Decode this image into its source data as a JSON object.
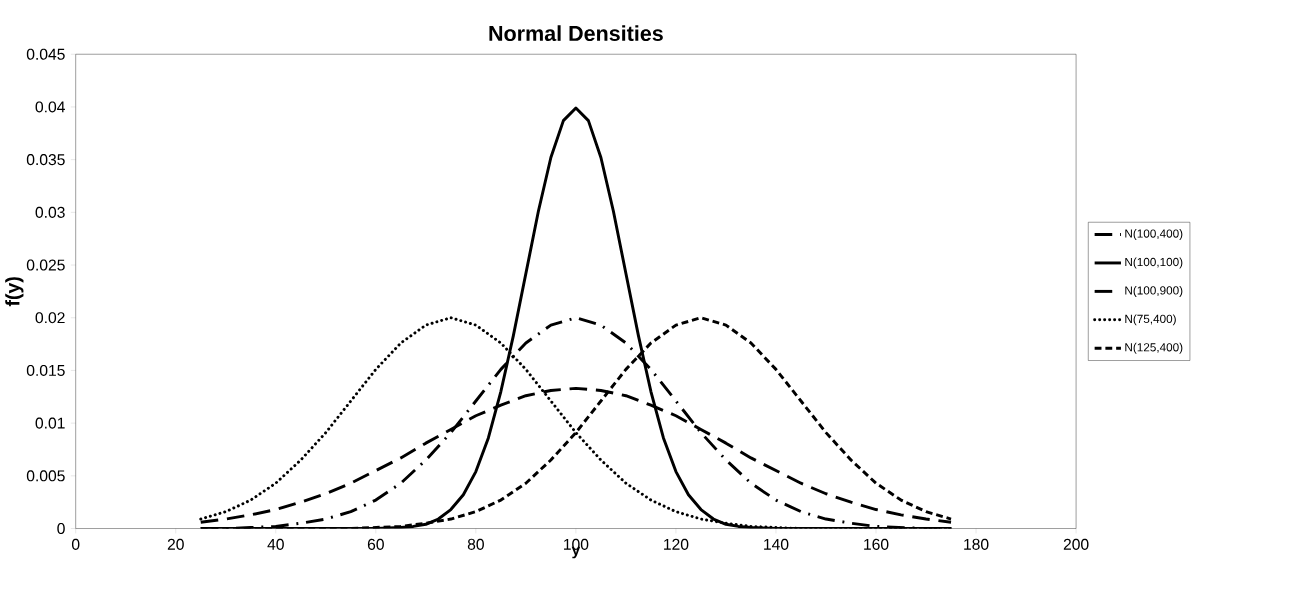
{
  "chart_data": {
    "type": "line",
    "title": "Normal Densities",
    "xlabel": "y",
    "ylabel": "f(y)",
    "x": [
      25,
      30,
      35,
      40,
      45,
      50,
      55,
      60,
      65,
      70,
      75,
      80,
      85,
      90,
      95,
      100,
      105,
      110,
      115,
      120,
      125,
      130,
      135,
      140,
      145,
      150,
      155,
      160,
      165,
      170,
      175
    ],
    "series": [
      {
        "name": "N(100,400)",
        "color": "#000000",
        "line_style": "dashdot",
        "values": [
          0,
          0,
          0.0001,
          0.0002,
          0.0005,
          0.0009,
          0.0016,
          0.0027,
          0.0043,
          0.0065,
          0.0091,
          0.0121,
          0.0151,
          0.0176,
          0.0193,
          0.02,
          0.0193,
          0.0176,
          0.0151,
          0.0121,
          0.0091,
          0.0065,
          0.0043,
          0.0027,
          0.0016,
          0.0009,
          0.0005,
          0.0002,
          0.0001,
          0,
          0
        ]
      },
      {
        "name": "N(100,100)",
        "color": "#000000",
        "line_style": "solid",
        "x": [
          25,
          50,
          60,
          65,
          67.5,
          70,
          72.5,
          75,
          77.5,
          80,
          82.5,
          85,
          87.5,
          90,
          92.5,
          95,
          97.5,
          100,
          102.5,
          105,
          107.5,
          110,
          112.5,
          115,
          117.5,
          120,
          122.5,
          125,
          127.5,
          130,
          132.5,
          135,
          140,
          150,
          175
        ],
        "values": [
          0,
          0,
          0,
          0.0001,
          0.0002,
          0.0004,
          0.0009,
          0.0018,
          0.0032,
          0.0054,
          0.0086,
          0.013,
          0.0183,
          0.0242,
          0.0301,
          0.0352,
          0.0387,
          0.0399,
          0.0387,
          0.0352,
          0.0301,
          0.0242,
          0.0183,
          0.013,
          0.0086,
          0.0054,
          0.0032,
          0.0018,
          0.0009,
          0.0004,
          0.0002,
          0.0001,
          0,
          0,
          0
        ]
      },
      {
        "name": "N(100,900)",
        "color": "#000000",
        "line_style": "long dashed",
        "values": [
          0.0006,
          0.0009,
          0.0013,
          0.0018,
          0.0025,
          0.0033,
          0.0043,
          0.0055,
          0.0067,
          0.0081,
          0.0094,
          0.0107,
          0.0117,
          0.0126,
          0.0131,
          0.0133,
          0.0131,
          0.0126,
          0.0117,
          0.0107,
          0.0094,
          0.0081,
          0.0067,
          0.0055,
          0.0043,
          0.0033,
          0.0025,
          0.0018,
          0.0013,
          0.0009,
          0.0006
        ]
      },
      {
        "name": "N(75,400)",
        "color": "#000000",
        "line_style": "dotted",
        "values": [
          0.0009,
          0.0016,
          0.0027,
          0.0043,
          0.0065,
          0.0091,
          0.0121,
          0.0151,
          0.0176,
          0.0193,
          0.02,
          0.0193,
          0.0176,
          0.0151,
          0.0121,
          0.0091,
          0.0065,
          0.0043,
          0.0027,
          0.0016,
          0.0009,
          0.0005,
          0.0002,
          0.0001,
          0,
          0,
          0,
          0,
          0,
          0,
          0
        ]
      },
      {
        "name": "N(125,400)",
        "color": "#000000",
        "line_style": "dashed",
        "values": [
          0,
          0,
          0,
          0,
          0,
          0,
          0,
          0.0001,
          0.0002,
          0.0005,
          0.0009,
          0.0016,
          0.0027,
          0.0043,
          0.0065,
          0.0091,
          0.0121,
          0.0151,
          0.0176,
          0.0193,
          0.02,
          0.0193,
          0.0176,
          0.0151,
          0.0121,
          0.0091,
          0.0065,
          0.0043,
          0.0027,
          0.0016,
          0.0009
        ]
      }
    ],
    "xlim": [
      0,
      200
    ],
    "ylim": [
      0,
      0.045
    ],
    "xticks": [
      0,
      20,
      40,
      60,
      80,
      100,
      120,
      140,
      160,
      180,
      200
    ],
    "yticks": [
      0,
      0.005,
      0.01,
      0.015,
      0.02,
      0.025,
      0.03,
      0.035,
      0.04,
      0.045
    ],
    "grid": false,
    "legend": "right",
    "marker": "none"
  }
}
